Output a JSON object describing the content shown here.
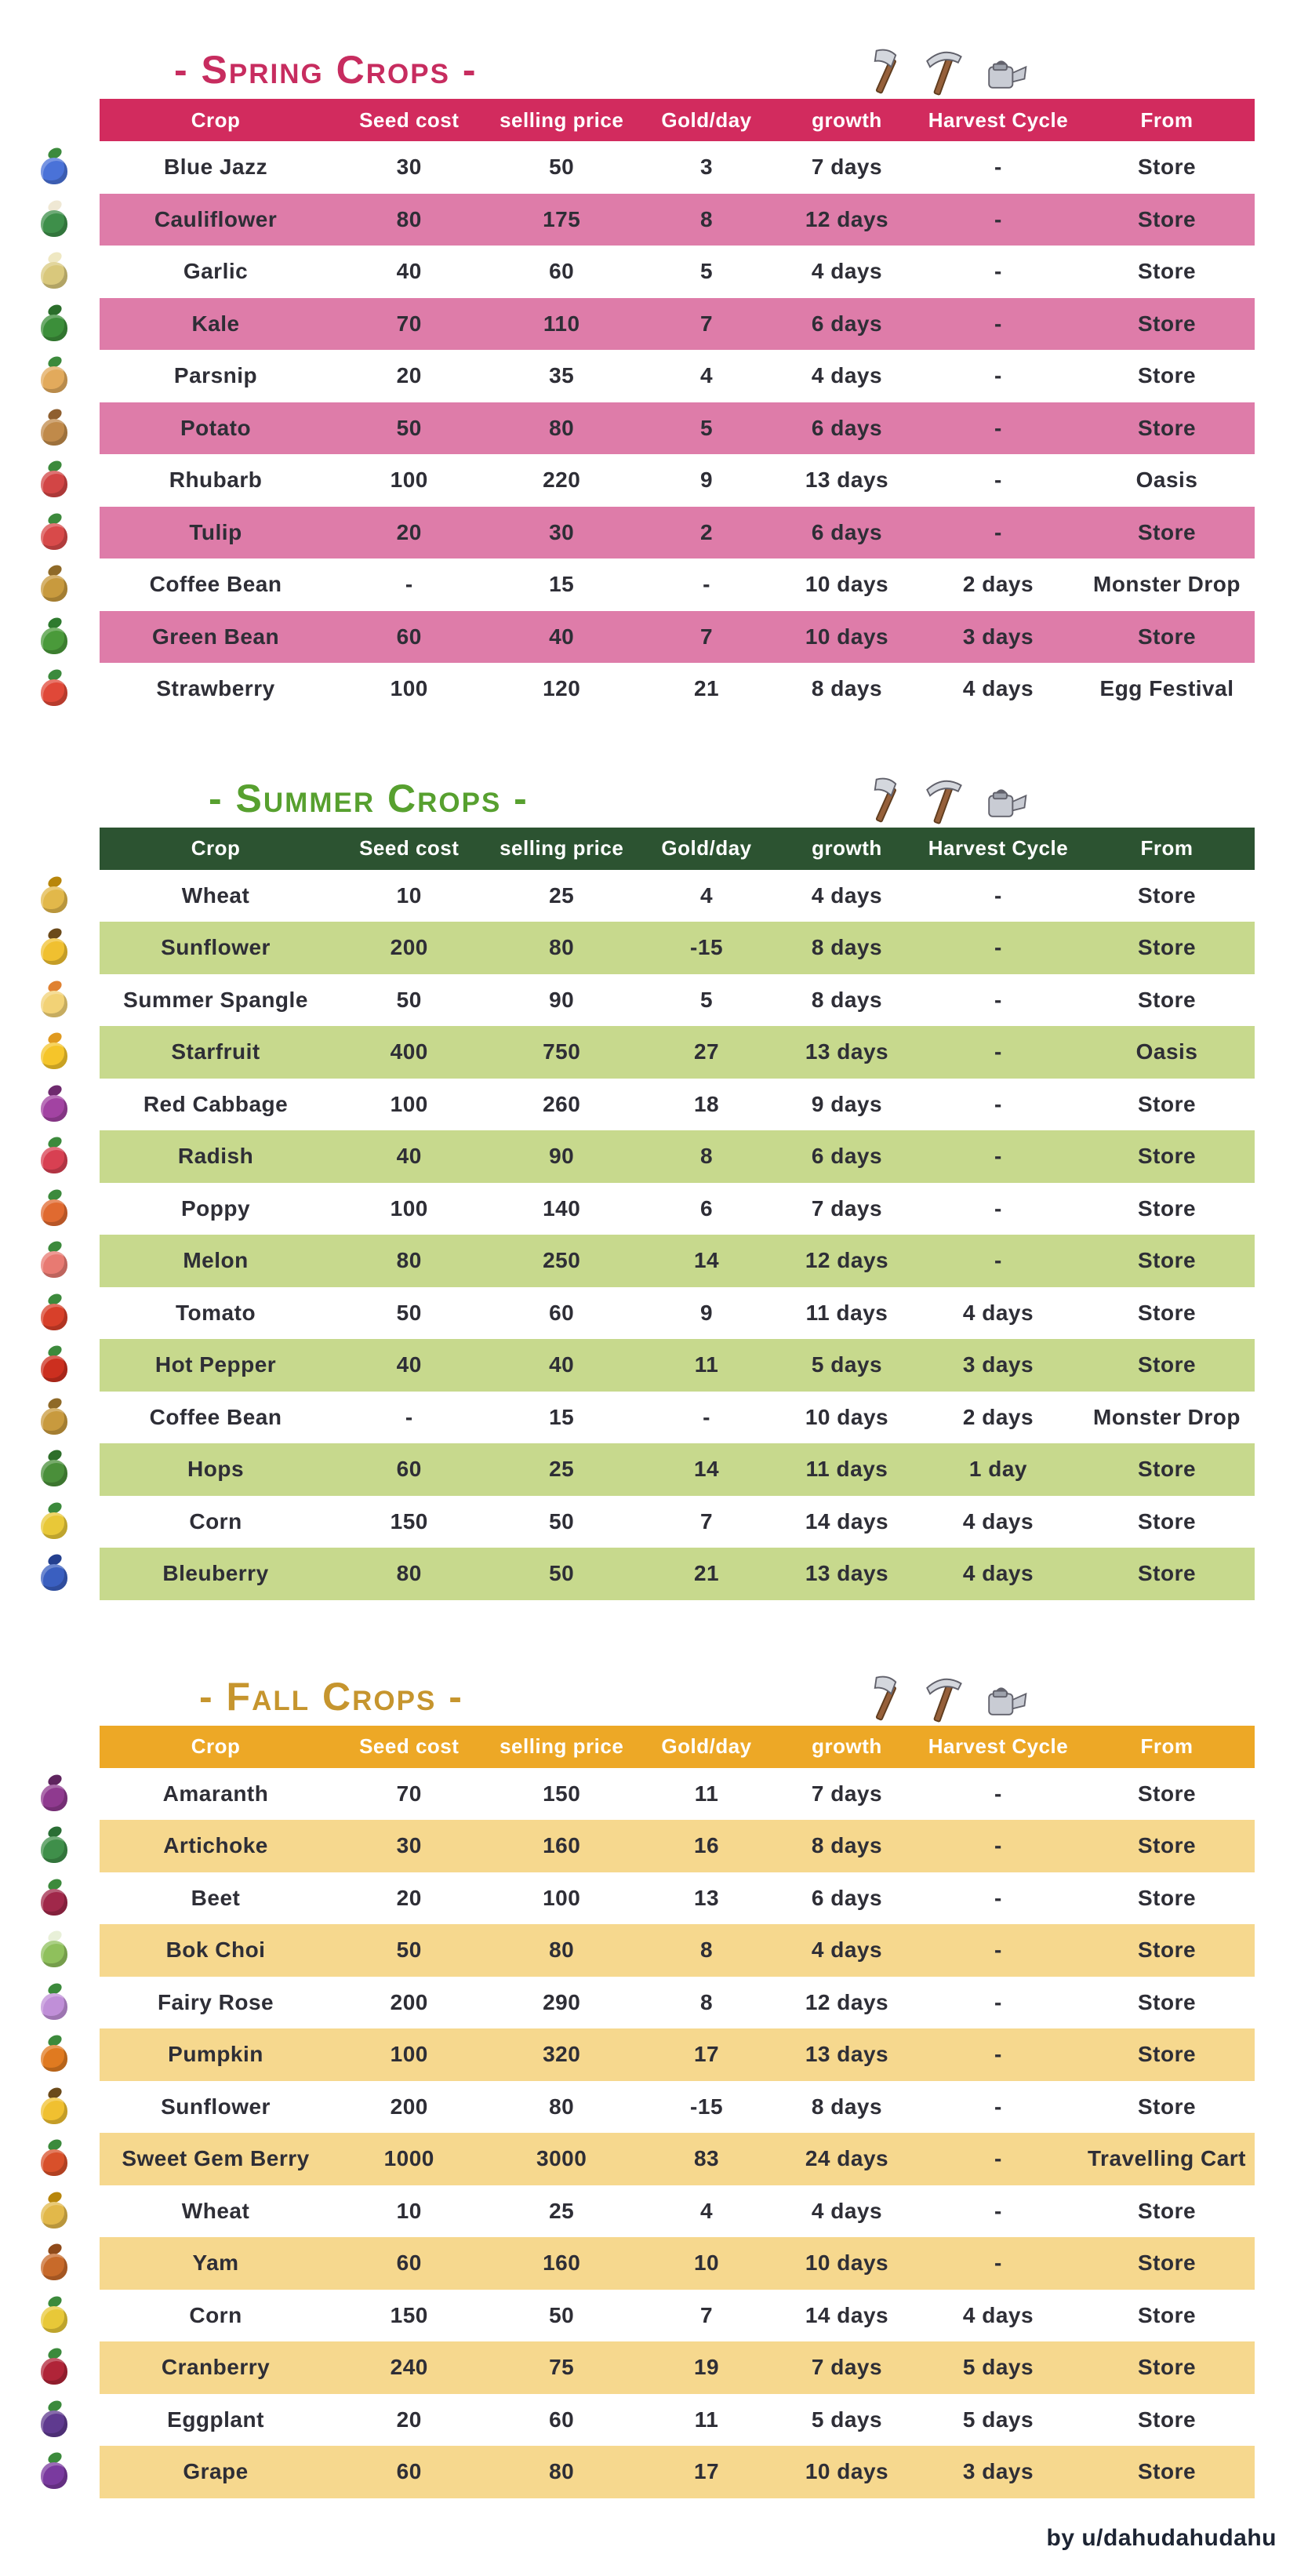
{
  "page": {
    "credit": "by u/dahudahudahu"
  },
  "columns": [
    "Crop",
    "Seed cost",
    "selling price",
    "Gold/day",
    "growth",
    "Harvest Cycle",
    "From"
  ],
  "tool_icon_names": [
    "axe-icon",
    "pickaxe-icon",
    "watering-can-icon"
  ],
  "sections": [
    {
      "id": "spring",
      "title": "- Spring Crops -",
      "colors": {
        "title": "#c72c5f",
        "header_bg": "#d22b5e",
        "row_alt_bg": "#de7ca9",
        "header_text": "#ffffff"
      },
      "rows": [
        {
          "crop": "Blue Jazz",
          "seed_cost": "30",
          "selling_price": "50",
          "gold_per_day": "3",
          "growth": "7 days",
          "harvest_cycle": "-",
          "from": "Store",
          "icon": {
            "main": "#4a72d8",
            "accent": "#3c8a3c"
          }
        },
        {
          "crop": "Cauliflower",
          "seed_cost": "80",
          "selling_price": "175",
          "gold_per_day": "8",
          "growth": "12 days",
          "harvest_cycle": "-",
          "from": "Store",
          "icon": {
            "main": "#3e8f4a",
            "accent": "#efe8d4"
          }
        },
        {
          "crop": "Garlic",
          "seed_cost": "40",
          "selling_price": "60",
          "gold_per_day": "5",
          "growth": "4 days",
          "harvest_cycle": "-",
          "from": "Store",
          "icon": {
            "main": "#d9c87c",
            "accent": "#efe8c2"
          }
        },
        {
          "crop": "Kale",
          "seed_cost": "70",
          "selling_price": "110",
          "gold_per_day": "7",
          "growth": "6 days",
          "harvest_cycle": "-",
          "from": "Store",
          "icon": {
            "main": "#3c8f3a",
            "accent": "#2b6e2b"
          }
        },
        {
          "crop": "Parsnip",
          "seed_cost": "20",
          "selling_price": "35",
          "gold_per_day": "4",
          "growth": "4 days",
          "harvest_cycle": "-",
          "from": "Store",
          "icon": {
            "main": "#e2aa5c",
            "accent": "#3c8a3c"
          }
        },
        {
          "crop": "Potato",
          "seed_cost": "50",
          "selling_price": "80",
          "gold_per_day": "5",
          "growth": "6 days",
          "harvest_cycle": "-",
          "from": "Store",
          "icon": {
            "main": "#c08a4a",
            "accent": "#8f5f2f"
          }
        },
        {
          "crop": "Rhubarb",
          "seed_cost": "100",
          "selling_price": "220",
          "gold_per_day": "9",
          "growth": "13 days",
          "harvest_cycle": "-",
          "from": "Oasis",
          "icon": {
            "main": "#d24545",
            "accent": "#3c8a3c"
          }
        },
        {
          "crop": "Tulip",
          "seed_cost": "20",
          "selling_price": "30",
          "gold_per_day": "2",
          "growth": "6 days",
          "harvest_cycle": "-",
          "from": "Store",
          "icon": {
            "main": "#d84a4a",
            "accent": "#3c8a3c"
          }
        },
        {
          "crop": "Coffee Bean",
          "seed_cost": "-",
          "selling_price": "15",
          "gold_per_day": "-",
          "growth": "10 days",
          "harvest_cycle": "2 days",
          "from": "Monster Drop",
          "icon": {
            "main": "#c89a3e",
            "accent": "#8f6a28"
          }
        },
        {
          "crop": "Green Bean",
          "seed_cost": "60",
          "selling_price": "40",
          "gold_per_day": "7",
          "growth": "10 days",
          "harvest_cycle": "3 days",
          "from": "Store",
          "icon": {
            "main": "#4a9a3a",
            "accent": "#2e7a2e"
          }
        },
        {
          "crop": "Strawberry",
          "seed_cost": "100",
          "selling_price": "120",
          "gold_per_day": "21",
          "growth": "8 days",
          "harvest_cycle": "4 days",
          "from": "Egg Festival",
          "icon": {
            "main": "#e04838",
            "accent": "#3c8a3c"
          }
        }
      ]
    },
    {
      "id": "summer",
      "title": "- Summer Crops -",
      "colors": {
        "title": "#57a02f",
        "header_bg": "#2c5331",
        "row_alt_bg": "#c7d98d",
        "header_text": "#ffffff"
      },
      "rows": [
        {
          "crop": "Wheat",
          "seed_cost": "10",
          "selling_price": "25",
          "gold_per_day": "4",
          "growth": "4 days",
          "harvest_cycle": "-",
          "from": "Store",
          "icon": {
            "main": "#e2b84a",
            "accent": "#b8860b"
          }
        },
        {
          "crop": "Sunflower",
          "seed_cost": "200",
          "selling_price": "80",
          "gold_per_day": "-15",
          "growth": "8 days",
          "harvest_cycle": "-",
          "from": "Store",
          "icon": {
            "main": "#f0c030",
            "accent": "#6b4a1a"
          }
        },
        {
          "crop": "Summer Spangle",
          "seed_cost": "50",
          "selling_price": "90",
          "gold_per_day": "5",
          "growth": "8 days",
          "harvest_cycle": "-",
          "from": "Store",
          "icon": {
            "main": "#f2d276",
            "accent": "#e08232"
          }
        },
        {
          "crop": "Starfruit",
          "seed_cost": "400",
          "selling_price": "750",
          "gold_per_day": "27",
          "growth": "13 days",
          "harvest_cycle": "-",
          "from": "Oasis",
          "icon": {
            "main": "#f5c52a",
            "accent": "#e09a20"
          }
        },
        {
          "crop": "Red Cabbage",
          "seed_cost": "100",
          "selling_price": "260",
          "gold_per_day": "18",
          "growth": "9 days",
          "harvest_cycle": "-",
          "from": "Store",
          "icon": {
            "main": "#a243a2",
            "accent": "#6e2a6e"
          }
        },
        {
          "crop": "Radish",
          "seed_cost": "40",
          "selling_price": "90",
          "gold_per_day": "8",
          "growth": "6 days",
          "harvest_cycle": "-",
          "from": "Store",
          "icon": {
            "main": "#d84052",
            "accent": "#3c8a3c"
          }
        },
        {
          "crop": "Poppy",
          "seed_cost": "100",
          "selling_price": "140",
          "gold_per_day": "6",
          "growth": "7 days",
          "harvest_cycle": "-",
          "from": "Store",
          "icon": {
            "main": "#e06a30",
            "accent": "#3c8a3c"
          }
        },
        {
          "crop": "Melon",
          "seed_cost": "80",
          "selling_price": "250",
          "gold_per_day": "14",
          "growth": "12 days",
          "harvest_cycle": "-",
          "from": "Store",
          "icon": {
            "main": "#e87a72",
            "accent": "#3c8a3c"
          }
        },
        {
          "crop": "Tomato",
          "seed_cost": "50",
          "selling_price": "60",
          "gold_per_day": "9",
          "growth": "11 days",
          "harvest_cycle": "4 days",
          "from": "Store",
          "icon": {
            "main": "#d8402a",
            "accent": "#3c8a3c"
          }
        },
        {
          "crop": "Hot Pepper",
          "seed_cost": "40",
          "selling_price": "40",
          "gold_per_day": "11",
          "growth": "5 days",
          "harvest_cycle": "3 days",
          "from": "Store",
          "icon": {
            "main": "#cc2f1f",
            "accent": "#3c8a3c"
          }
        },
        {
          "crop": "Coffee Bean",
          "seed_cost": "-",
          "selling_price": "15",
          "gold_per_day": "-",
          "growth": "10 days",
          "harvest_cycle": "2 days",
          "from": "Monster Drop",
          "icon": {
            "main": "#c89a3e",
            "accent": "#8f6a28"
          }
        },
        {
          "crop": "Hops",
          "seed_cost": "60",
          "selling_price": "25",
          "gold_per_day": "14",
          "growth": "11 days",
          "harvest_cycle": "1 day",
          "from": "Store",
          "icon": {
            "main": "#4a8f3a",
            "accent": "#2e6e2a"
          }
        },
        {
          "crop": "Corn",
          "seed_cost": "150",
          "selling_price": "50",
          "gold_per_day": "7",
          "growth": "14 days",
          "harvest_cycle": "4 days",
          "from": "Store",
          "icon": {
            "main": "#e8c838",
            "accent": "#3c8a3c"
          }
        },
        {
          "crop": "Bleuberry",
          "seed_cost": "80",
          "selling_price": "50",
          "gold_per_day": "21",
          "growth": "13 days",
          "harvest_cycle": "4 days",
          "from": "Store",
          "icon": {
            "main": "#3a5fc0",
            "accent": "#24408f"
          }
        }
      ]
    },
    {
      "id": "fall",
      "title": "- Fall Crops -",
      "colors": {
        "title": "#c6952e",
        "header_bg": "#eda826",
        "row_alt_bg": "#f6d88e",
        "header_text": "#ffffff"
      },
      "rows": [
        {
          "crop": "Amaranth",
          "seed_cost": "70",
          "selling_price": "150",
          "gold_per_day": "11",
          "growth": "7 days",
          "harvest_cycle": "-",
          "from": "Store",
          "icon": {
            "main": "#8f3a8f",
            "accent": "#5f245f"
          }
        },
        {
          "crop": "Artichoke",
          "seed_cost": "30",
          "selling_price": "160",
          "gold_per_day": "16",
          "growth": "8 days",
          "harvest_cycle": "-",
          "from": "Store",
          "icon": {
            "main": "#3f8f4a",
            "accent": "#2a6e35"
          }
        },
        {
          "crop": "Beet",
          "seed_cost": "20",
          "selling_price": "100",
          "gold_per_day": "13",
          "growth": "6 days",
          "harvest_cycle": "-",
          "from": "Store",
          "icon": {
            "main": "#a0284a",
            "accent": "#3c8a3c"
          }
        },
        {
          "crop": "Bok Choi",
          "seed_cost": "50",
          "selling_price": "80",
          "gold_per_day": "8",
          "growth": "4 days",
          "harvest_cycle": "-",
          "from": "Store",
          "icon": {
            "main": "#8fc05c",
            "accent": "#e8f0d8"
          }
        },
        {
          "crop": "Fairy Rose",
          "seed_cost": "200",
          "selling_price": "290",
          "gold_per_day": "8",
          "growth": "12 days",
          "harvest_cycle": "-",
          "from": "Store",
          "icon": {
            "main": "#c08fd8",
            "accent": "#3c8a3c"
          }
        },
        {
          "crop": "Pumpkin",
          "seed_cost": "100",
          "selling_price": "320",
          "gold_per_day": "17",
          "growth": "13 days",
          "harvest_cycle": "-",
          "from": "Store",
          "icon": {
            "main": "#e07a20",
            "accent": "#3c8a3c"
          }
        },
        {
          "crop": "Sunflower",
          "seed_cost": "200",
          "selling_price": "80",
          "gold_per_day": "-15",
          "growth": "8 days",
          "harvest_cycle": "-",
          "from": "Store",
          "icon": {
            "main": "#f0c030",
            "accent": "#6b4a1a"
          }
        },
        {
          "crop": "Sweet Gem Berry",
          "seed_cost": "1000",
          "selling_price": "3000",
          "gold_per_day": "83",
          "growth": "24 days",
          "harvest_cycle": "-",
          "from": "Travelling Cart",
          "icon": {
            "main": "#d8502a",
            "accent": "#3c8a3c"
          }
        },
        {
          "crop": "Wheat",
          "seed_cost": "10",
          "selling_price": "25",
          "gold_per_day": "4",
          "growth": "4 days",
          "harvest_cycle": "-",
          "from": "Store",
          "icon": {
            "main": "#e2b84a",
            "accent": "#b8860b"
          }
        },
        {
          "crop": "Yam",
          "seed_cost": "60",
          "selling_price": "160",
          "gold_per_day": "10",
          "growth": "10 days",
          "harvest_cycle": "-",
          "from": "Store",
          "icon": {
            "main": "#c86a2a",
            "accent": "#8f4a1a"
          }
        },
        {
          "crop": "Corn",
          "seed_cost": "150",
          "selling_price": "50",
          "gold_per_day": "7",
          "growth": "14 days",
          "harvest_cycle": "4 days",
          "from": "Store",
          "icon": {
            "main": "#e8c838",
            "accent": "#3c8a3c"
          }
        },
        {
          "crop": "Cranberry",
          "seed_cost": "240",
          "selling_price": "75",
          "gold_per_day": "19",
          "growth": "7 days",
          "harvest_cycle": "5 days",
          "from": "Store",
          "icon": {
            "main": "#b02438",
            "accent": "#3c8a3c"
          }
        },
        {
          "crop": "Eggplant",
          "seed_cost": "20",
          "selling_price": "60",
          "gold_per_day": "11",
          "growth": "5 days",
          "harvest_cycle": "5 days",
          "from": "Store",
          "icon": {
            "main": "#5f3a8f",
            "accent": "#3c8a3c"
          }
        },
        {
          "crop": "Grape",
          "seed_cost": "60",
          "selling_price": "80",
          "gold_per_day": "17",
          "growth": "10 days",
          "harvest_cycle": "3 days",
          "from": "Store",
          "icon": {
            "main": "#7a3a9f",
            "accent": "#3c8a3c"
          }
        }
      ]
    }
  ]
}
